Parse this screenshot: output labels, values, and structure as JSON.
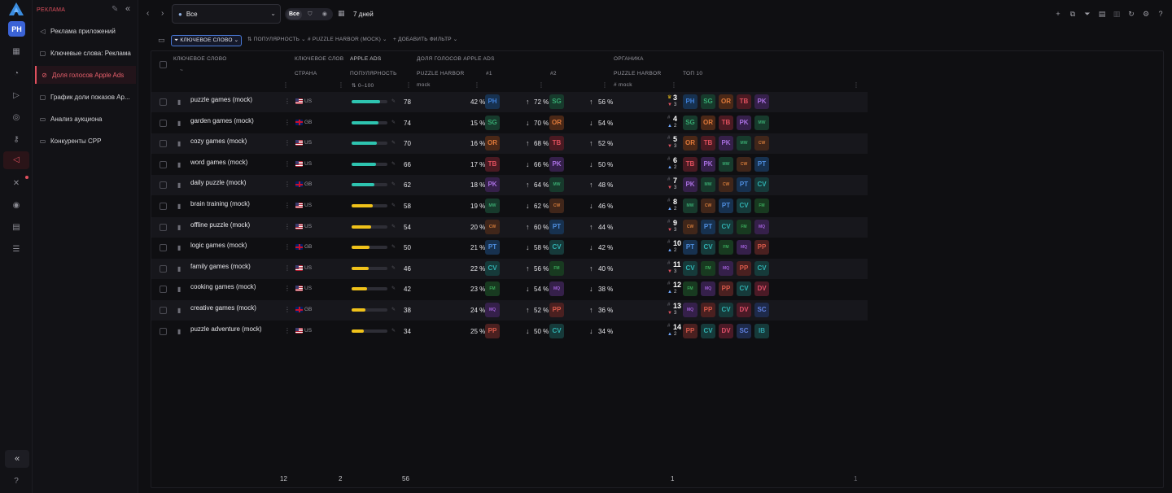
{
  "sidebar": {
    "avatar": "PH",
    "section_title": "РЕКЛАМА",
    "items": [
      {
        "label": "Реклама приложений",
        "icon": "megaphone-icon"
      },
      {
        "label": "Ключевые слова: Реклама",
        "icon": "edit-box-icon"
      },
      {
        "label": "Доля голосов Apple Ads",
        "icon": "circle-slash-icon"
      },
      {
        "label": "График доли показов Ap...",
        "icon": "chart-box-icon"
      },
      {
        "label": "Анализ аукциона",
        "icon": "document-icon"
      },
      {
        "label": "Конкуренты CPP",
        "icon": "document-icon"
      }
    ]
  },
  "topbar": {
    "scope_value": "Все",
    "segment_all": "Все",
    "date_range": "7 дней"
  },
  "filters": {
    "keyword": "КЛЮЧЕВОЕ СЛОВО",
    "popularity": "ПОПУЛЯРНОСТЬ",
    "puzzle_harbor": "PUZZLE HARBOR (MOCK)",
    "add_filter": "ДОБАВИТЬ ФИЛЬТР"
  },
  "table": {
    "headers": {
      "keyword": "КЛЮЧЕВОЕ СЛОВО",
      "keyword_sub": "~",
      "keyword_sl": "КЛЮЧЕВОЕ СЛОВ",
      "country": "СТРАНА",
      "apple_ads": "APPLE ADS",
      "popularity": "ПОПУЛЯРНОСТЬ",
      "popularity_range": "0–100",
      "share_of_voice": "ДОЛЯ ГОЛОСОВ APPLE ADS",
      "puzzle_harbor": "PUZZLE HARBOR",
      "mock": "mock",
      "rank1": "#1",
      "rank2": "#2",
      "organic": "ОРГАНИКА",
      "organic_ph": "PUZZLE HARBOR",
      "organic_mock": "mock",
      "top10": "ТОП 10"
    },
    "rows": [
      {
        "keyword": "puzzle games (mock)",
        "country": "US",
        "popularity": 78,
        "ph_share": "42 %",
        "r1_share": "72 %",
        "r1_dir": "up",
        "r1_app": "SG",
        "r2_share": "56 %",
        "r2_dir": "up",
        "rank": "3",
        "rank_change": "3",
        "rank_dir": "down",
        "top10": [
          "PH",
          "SG",
          "OR",
          "TB",
          "PK"
        ],
        "ph_app": "PH"
      },
      {
        "keyword": "garden games (mock)",
        "country": "GB",
        "popularity": 74,
        "ph_share": "15 %",
        "r1_share": "70 %",
        "r1_dir": "down",
        "r1_app": "OR",
        "r2_share": "54 %",
        "r2_dir": "down",
        "rank": "4",
        "rank_change": "2",
        "rank_dir": "up",
        "top10": [
          "SG",
          "OR",
          "TB",
          "PK",
          "MW"
        ],
        "ph_app": "SG"
      },
      {
        "keyword": "cozy games (mock)",
        "country": "US",
        "popularity": 70,
        "ph_share": "16 %",
        "r1_share": "68 %",
        "r1_dir": "up",
        "r1_app": "TB",
        "r2_share": "52 %",
        "r2_dir": "up",
        "rank": "5",
        "rank_change": "3",
        "rank_dir": "down",
        "top10": [
          "OR",
          "TB",
          "PK",
          "MW",
          "CW"
        ],
        "ph_app": "OR"
      },
      {
        "keyword": "word games (mock)",
        "country": "US",
        "popularity": 66,
        "ph_share": "17 %",
        "r1_share": "66 %",
        "r1_dir": "down",
        "r1_app": "PK",
        "r2_share": "50 %",
        "r2_dir": "down",
        "rank": "6",
        "rank_change": "2",
        "rank_dir": "up",
        "top10": [
          "TB",
          "PK",
          "MW",
          "CW",
          "PT"
        ],
        "ph_app": "TB"
      },
      {
        "keyword": "daily puzzle (mock)",
        "country": "GB",
        "popularity": 62,
        "ph_share": "18 %",
        "r1_share": "64 %",
        "r1_dir": "up",
        "r1_app": "MW",
        "r2_share": "48 %",
        "r2_dir": "up",
        "rank": "7",
        "rank_change": "3",
        "rank_dir": "down",
        "top10": [
          "PK",
          "MW",
          "CW",
          "PT",
          "CV"
        ],
        "ph_app": "PK"
      },
      {
        "keyword": "brain training (mock)",
        "country": "US",
        "popularity": 58,
        "ph_share": "19 %",
        "r1_share": "62 %",
        "r1_dir": "down",
        "r1_app": "CW",
        "r2_share": "46 %",
        "r2_dir": "down",
        "rank": "8",
        "rank_change": "2",
        "rank_dir": "up",
        "top10": [
          "MW",
          "CW",
          "PT",
          "CV",
          "FM"
        ],
        "ph_app": "MW"
      },
      {
        "keyword": "offline puzzle (mock)",
        "country": "US",
        "popularity": 54,
        "ph_share": "20 %",
        "r1_share": "60 %",
        "r1_dir": "up",
        "r1_app": "PT",
        "r2_share": "44 %",
        "r2_dir": "up",
        "rank": "9",
        "rank_change": "3",
        "rank_dir": "down",
        "top10": [
          "CW",
          "PT",
          "CV",
          "FM",
          "MQ"
        ],
        "ph_app": "CW"
      },
      {
        "keyword": "logic games (mock)",
        "country": "GB",
        "popularity": 50,
        "ph_share": "21 %",
        "r1_share": "58 %",
        "r1_dir": "down",
        "r1_app": "CV",
        "r2_share": "42 %",
        "r2_dir": "down",
        "rank": "10",
        "rank_change": "2",
        "rank_dir": "up",
        "top10": [
          "PT",
          "CV",
          "FM",
          "MQ",
          "PP"
        ],
        "ph_app": "PT"
      },
      {
        "keyword": "family games (mock)",
        "country": "US",
        "popularity": 46,
        "ph_share": "22 %",
        "r1_share": "56 %",
        "r1_dir": "up",
        "r1_app": "FM",
        "r2_share": "40 %",
        "r2_dir": "up",
        "rank": "11",
        "rank_change": "3",
        "rank_dir": "down",
        "top10": [
          "CV",
          "FM",
          "MQ",
          "PP",
          "CV"
        ],
        "ph_app": "CV"
      },
      {
        "keyword": "cooking games (mock)",
        "country": "US",
        "popularity": 42,
        "ph_share": "23 %",
        "r1_share": "54 %",
        "r1_dir": "down",
        "r1_app": "MQ",
        "r2_share": "38 %",
        "r2_dir": "down",
        "rank": "12",
        "rank_change": "2",
        "rank_dir": "up",
        "top10": [
          "FM",
          "MQ",
          "PP",
          "CV",
          "DV"
        ],
        "ph_app": "FM"
      },
      {
        "keyword": "creative games (mock)",
        "country": "GB",
        "popularity": 38,
        "ph_share": "24 %",
        "r1_share": "52 %",
        "r1_dir": "up",
        "r1_app": "PP",
        "r2_share": "36 %",
        "r2_dir": "up",
        "rank": "13",
        "rank_change": "3",
        "rank_dir": "down",
        "top10": [
          "MQ",
          "PP",
          "CV",
          "DV",
          "SC"
        ],
        "ph_app": "MQ"
      },
      {
        "keyword": "puzzle adventure (mock)",
        "country": "US",
        "popularity": 34,
        "ph_share": "25 %",
        "r1_share": "50 %",
        "r1_dir": "down",
        "r1_app": "CV",
        "r2_share": "34 %",
        "r2_dir": "down",
        "rank": "14",
        "rank_change": "2",
        "rank_dir": "up",
        "top10": [
          "PP",
          "CV",
          "DV",
          "SC",
          "IB"
        ],
        "ph_app": "PP"
      }
    ],
    "footer": {
      "keywords": "12",
      "countries": "2",
      "popularity": "56",
      "organic": "1",
      "top10": "1"
    }
  },
  "colors": {
    "accent": "#e0505e",
    "pop_high": "#2ec4b0",
    "pop_low": "#f0c21a",
    "app": {
      "PH": [
        "#17314f",
        "#3f7fd8"
      ],
      "SG": [
        "#173a2c",
        "#36a870"
      ],
      "OR": [
        "#4a2817",
        "#e07a3a"
      ],
      "TB": [
        "#4a1a22",
        "#e0505e"
      ],
      "PK": [
        "#35204a",
        "#a970e0"
      ],
      "MW": [
        "#173a2c",
        "#3aa870"
      ],
      "CW": [
        "#40261a",
        "#d07a3a"
      ],
      "PT": [
        "#17314f",
        "#4f8fe0"
      ],
      "CV": [
        "#163a3a",
        "#30b0b0"
      ],
      "FM": [
        "#183a20",
        "#3aa85a"
      ],
      "MQ": [
        "#35204a",
        "#a060d8"
      ],
      "PP": [
        "#4a2020",
        "#d85a4a"
      ],
      "DV": [
        "#4a1a26",
        "#e0506a"
      ],
      "SC": [
        "#1e2a4a",
        "#6080e0"
      ],
      "IB": [
        "#163a3a",
        "#30a0a8"
      ]
    }
  }
}
